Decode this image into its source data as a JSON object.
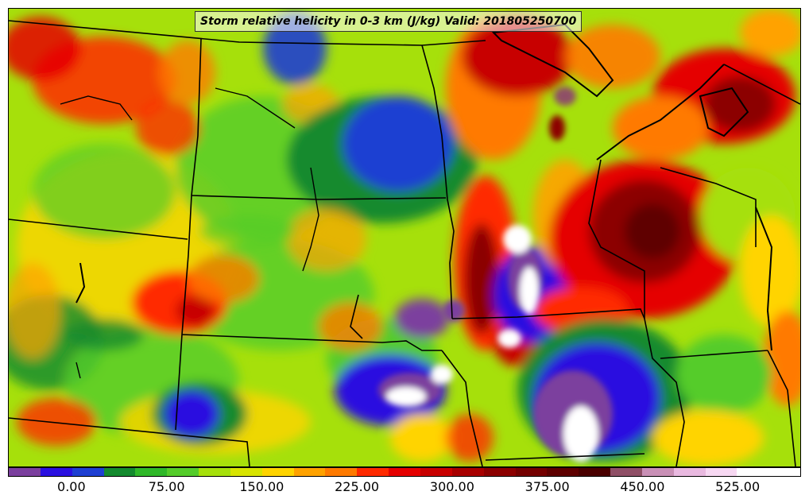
{
  "title": "Storm relative helicity in 0-3 km (J/kg) Valid: 201805250700",
  "colorbar": {
    "colors": [
      "#7b3f9e",
      "#2a10e0",
      "#1e3fd2",
      "#138a2e",
      "#2fb829",
      "#54cc2a",
      "#a6e00b",
      "#d8e400",
      "#ffd400",
      "#ffa200",
      "#ff7a00",
      "#ff2a00",
      "#e50000",
      "#c80000",
      "#a80000",
      "#8c0000",
      "#740000",
      "#5e0000",
      "#4a0000",
      "#8f4f66",
      "#c990b6",
      "#e9b9e0",
      "#f7d8f2",
      "#ffffff",
      "#ffffff"
    ],
    "labels": [
      "0.00",
      "75.00",
      "150.00",
      "225.00",
      "300.00",
      "375.00",
      "450.00",
      "525.00"
    ]
  },
  "map_layers": [
    "helicity-field",
    "state-borders",
    "lake-outlines",
    "rivers"
  ],
  "icons": {
    "map": "filled-contour-map"
  }
}
